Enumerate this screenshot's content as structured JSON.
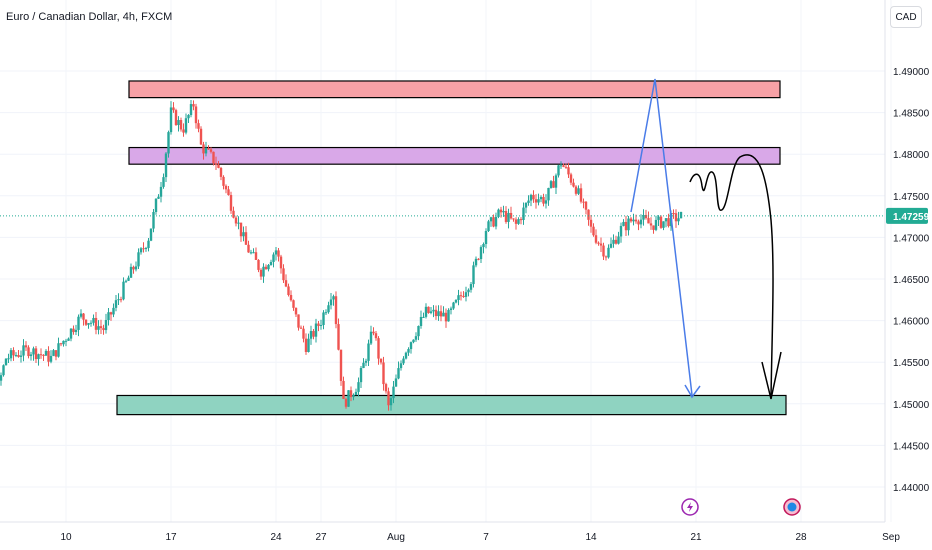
{
  "title": "Euro / Canadian Dollar, 4h, FXCM",
  "currency": "CAD",
  "colors": {
    "up": "#26a69a",
    "down": "#ef5350",
    "price_tag": "#22ab94",
    "zone_top": "#f7a1a6",
    "zone_mid": "#d9a8e8",
    "zone_bottom": "#8fd3c1",
    "arrow_blue": "#4a7ce8",
    "drawing_black": "#000000"
  },
  "chart_data": {
    "type": "candlestick",
    "symbol": "EURCAD",
    "timeframe": "4h",
    "y_ticks": [
      "1.49000",
      "1.48500",
      "1.48000",
      "1.47500",
      "1.47000",
      "1.46500",
      "1.46000",
      "1.45500",
      "1.45000",
      "1.44500",
      "1.44000"
    ],
    "ylim": [
      1.4365,
      1.4935
    ],
    "x_ticks": [
      {
        "label": "10",
        "day": 10
      },
      {
        "label": "17",
        "day": 17
      },
      {
        "label": "24",
        "day": 24
      },
      {
        "label": "27",
        "day": 27
      },
      {
        "label": "Aug",
        "day": 32
      },
      {
        "label": "7",
        "day": 38
      },
      {
        "label": "14",
        "day": 45
      },
      {
        "label": "21",
        "day": 52
      },
      {
        "label": "28",
        "day": 59
      },
      {
        "label": "Sep",
        "day": 65
      }
    ],
    "last_price": "1.47259",
    "last_price_value": 1.47259,
    "anchors": [
      [
        3.0,
        1.4395
      ],
      [
        4.5,
        1.4455
      ],
      [
        6.0,
        1.4555
      ],
      [
        7.5,
        1.4565
      ],
      [
        9.0,
        1.4555
      ],
      [
        11.0,
        1.4605
      ],
      [
        12.5,
        1.459
      ],
      [
        14.0,
        1.4645
      ],
      [
        15.5,
        1.47
      ],
      [
        16.5,
        1.478
      ],
      [
        17.0,
        1.485
      ],
      [
        17.8,
        1.483
      ],
      [
        18.5,
        1.486
      ],
      [
        19.0,
        1.481
      ],
      [
        20.0,
        1.479
      ],
      [
        21.0,
        1.474
      ],
      [
        22.0,
        1.469
      ],
      [
        23.0,
        1.466
      ],
      [
        24.0,
        1.4685
      ],
      [
        25.0,
        1.462
      ],
      [
        26.0,
        1.457
      ],
      [
        27.0,
        1.46
      ],
      [
        27.8,
        1.464
      ],
      [
        28.5,
        1.45
      ],
      [
        29.5,
        1.4525
      ],
      [
        30.5,
        1.459
      ],
      [
        31.5,
        1.4495
      ],
      [
        32.5,
        1.456
      ],
      [
        34.0,
        1.461
      ],
      [
        35.5,
        1.4605
      ],
      [
        37.0,
        1.465
      ],
      [
        38.0,
        1.471
      ],
      [
        39.0,
        1.473
      ],
      [
        40.0,
        1.4715
      ],
      [
        41.0,
        1.475
      ],
      [
        42.0,
        1.4745
      ],
      [
        43.0,
        1.479
      ],
      [
        44.0,
        1.476
      ],
      [
        45.0,
        1.471
      ],
      [
        46.0,
        1.468
      ],
      [
        47.0,
        1.471
      ],
      [
        48.0,
        1.4725
      ],
      [
        49.0,
        1.4715
      ],
      [
        50.0,
        1.472
      ],
      [
        51.0,
        1.4725
      ]
    ],
    "zones": [
      {
        "name": "resistance-zone-top",
        "from": 1.4868,
        "to": 1.4888,
        "day_start": 14.2,
        "day_end": 57.6
      },
      {
        "name": "resistance-zone-mid",
        "from": 1.4788,
        "to": 1.4808,
        "day_start": 14.2,
        "day_end": 57.6
      },
      {
        "name": "support-zone-bottom",
        "from": 1.4487,
        "to": 1.451,
        "day_start": 13.4,
        "day_end": 58.0
      }
    ],
    "event_icons": [
      {
        "name": "lightning-event-icon",
        "day": 51.6
      },
      {
        "name": "globe-event-icon",
        "day": 58.4
      }
    ]
  }
}
